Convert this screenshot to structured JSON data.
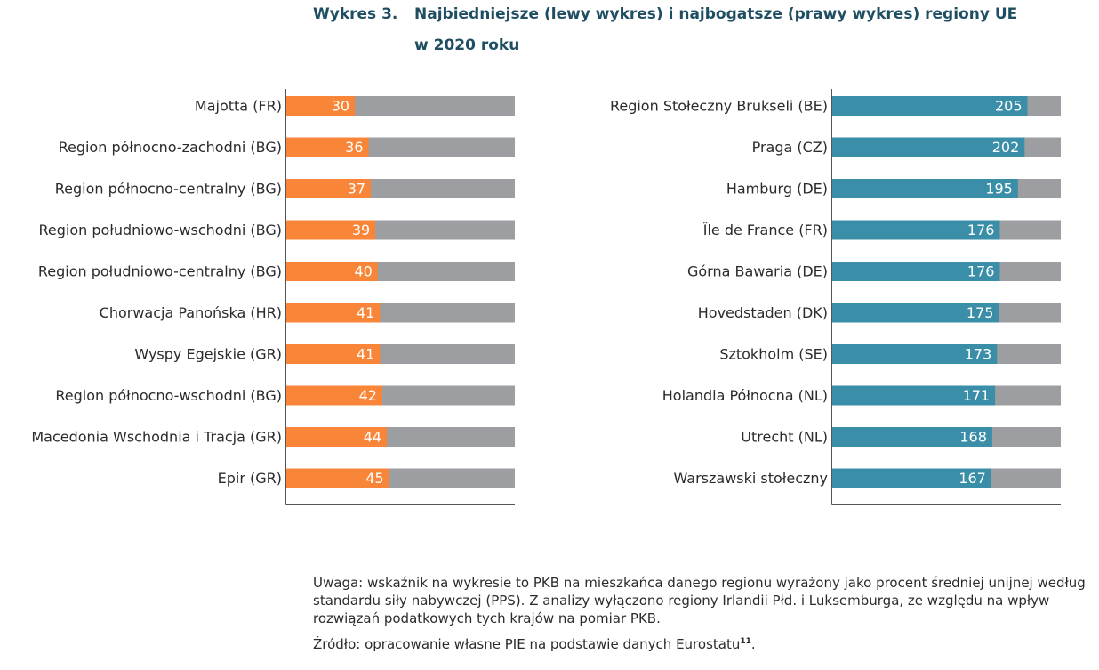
{
  "title": {
    "label": "Wykres 3.",
    "line1": "Najbiedniejsze (lewy wykres) i najbogatsze (prawy wykres) regiony UE",
    "line2": "w 2020 roku"
  },
  "colors": {
    "poorest_bar": "#f98638",
    "richest_bar": "#3a8ea8",
    "background_bar": "#9d9ea1",
    "axis": "#555555"
  },
  "chart_data": [
    {
      "type": "bar",
      "orientation": "horizontal",
      "name": "poorest",
      "categories": [
        "Majotta (FR)",
        "Region północno-zachodni (BG)",
        "Region północno-centralny (BG)",
        "Region południowo-wschodni (BG)",
        "Region południowo-centralny (BG)",
        "Chorwacja Panońska (HR)",
        "Wyspy Egejskie (GR)",
        "Region północno-wschodni (BG)",
        "Macedonia Wschodnia i Tracja (GR)",
        "Epir (GR)"
      ],
      "values": [
        30,
        36,
        37,
        39,
        40,
        41,
        41,
        42,
        44,
        45
      ],
      "xlim": [
        0,
        100
      ]
    },
    {
      "type": "bar",
      "orientation": "horizontal",
      "name": "richest",
      "categories": [
        "Region Stołeczny Brukseli (BE)",
        "Praga (CZ)",
        "Hamburg (DE)",
        "Île de France (FR)",
        "Górna Bawaria (DE)",
        "Hovedstaden (DK)",
        "Sztokholm (SE)",
        "Holandia Północna (NL)",
        "Utrecht (NL)",
        "Warszawski stołeczny"
      ],
      "values": [
        205,
        202,
        195,
        176,
        176,
        175,
        173,
        171,
        168,
        167
      ],
      "xlim": [
        0,
        240
      ]
    }
  ],
  "note": {
    "text": "Uwaga: wskaźnik na wykresie to PKB na mieszkańca danego regionu wyrażony jako procent średniej unijnej według standardu siły nabywczej (PPS). Z analizy wyłączono regiony Irlandii Płd. i Luksemburga, ze względu na wpływ rozwiązań podatkowych tych krajów na pomiar PKB.",
    "source": "Źródło: opracowanie własne PIE na podstawie danych Eurostatu",
    "footnote": "11",
    "source_end": "."
  }
}
